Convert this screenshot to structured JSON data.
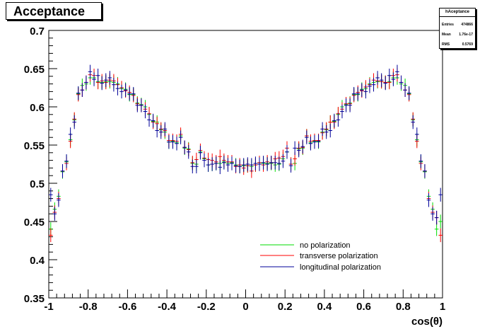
{
  "title": "Acceptance",
  "stats": {
    "name": "hAceptance",
    "rows": [
      {
        "label": "Entries",
        "value": "474866"
      },
      {
        "label": "Mean",
        "value": "1.76e-17"
      },
      {
        "label": "RMS",
        "value": "0.5769"
      }
    ]
  },
  "colors": {
    "none": "#00dd00",
    "transverse": "#ff0000",
    "longitudinal": "#000099"
  },
  "chart_data": {
    "type": "scatter",
    "xlabel": "cos(θ)",
    "ylabel": "",
    "xlim": [
      -1,
      1
    ],
    "ylim": [
      0.35,
      0.7
    ],
    "xticks": [
      -1,
      -0.8,
      -0.6,
      -0.4,
      -0.2,
      0,
      0.2,
      0.4,
      0.6,
      0.8,
      1
    ],
    "xtick_labels": [
      "-1",
      "-0.8",
      "-0.6",
      "-0.4",
      "-0.2",
      "0",
      "0.2",
      "0.4",
      "0.6",
      "0.8",
      "1"
    ],
    "yticks": [
      0.35,
      0.4,
      0.45,
      0.5,
      0.55,
      0.6,
      0.65,
      0.7
    ],
    "ytick_labels": [
      "0.35",
      "0.4",
      "0.45",
      "0.5",
      "0.55",
      "0.6",
      "0.65",
      "0.7"
    ],
    "legend_position": "bottom-center",
    "x": [
      -0.99,
      -0.97,
      -0.95,
      -0.93,
      -0.91,
      -0.89,
      -0.87,
      -0.85,
      -0.83,
      -0.81,
      -0.79,
      -0.77,
      -0.75,
      -0.73,
      -0.71,
      -0.69,
      -0.67,
      -0.65,
      -0.63,
      -0.61,
      -0.59,
      -0.57,
      -0.55,
      -0.53,
      -0.51,
      -0.49,
      -0.47,
      -0.45,
      -0.43,
      -0.41,
      -0.39,
      -0.37,
      -0.35,
      -0.33,
      -0.31,
      -0.29,
      -0.27,
      -0.25,
      -0.23,
      -0.21,
      -0.19,
      -0.17,
      -0.15,
      -0.13,
      -0.11,
      -0.09,
      -0.07,
      -0.05,
      -0.03,
      -0.01,
      0.01,
      0.03,
      0.05,
      0.07,
      0.09,
      0.11,
      0.13,
      0.15,
      0.17,
      0.19,
      0.21,
      0.23,
      0.25,
      0.27,
      0.29,
      0.31,
      0.33,
      0.35,
      0.37,
      0.39,
      0.41,
      0.43,
      0.45,
      0.47,
      0.49,
      0.51,
      0.53,
      0.55,
      0.57,
      0.59,
      0.61,
      0.63,
      0.65,
      0.67,
      0.69,
      0.71,
      0.73,
      0.75,
      0.77,
      0.79,
      0.81,
      0.83,
      0.85,
      0.87,
      0.89,
      0.91,
      0.93,
      0.95,
      0.97,
      0.99
    ],
    "series": [
      {
        "name": "no polarization",
        "key": "none",
        "values": [
          0.44,
          0.466,
          0.483,
          0.515,
          0.528,
          0.557,
          0.583,
          0.617,
          0.628,
          0.63,
          0.638,
          0.638,
          0.633,
          0.632,
          0.633,
          0.633,
          0.632,
          0.63,
          0.624,
          0.623,
          0.616,
          0.616,
          0.605,
          0.603,
          0.6,
          0.59,
          0.581,
          0.58,
          0.57,
          0.567,
          0.554,
          0.555,
          0.553,
          0.562,
          0.546,
          0.545,
          0.526,
          0.525,
          0.541,
          0.532,
          0.524,
          0.525,
          0.526,
          0.526,
          0.528,
          0.526,
          0.527,
          0.524,
          0.522,
          0.523,
          0.523,
          0.522,
          0.524,
          0.527,
          0.526,
          0.526,
          0.526,
          0.524,
          0.525,
          0.532,
          0.541,
          0.525,
          0.526,
          0.545,
          0.546,
          0.562,
          0.553,
          0.555,
          0.554,
          0.567,
          0.57,
          0.58,
          0.581,
          0.59,
          0.6,
          0.603,
          0.605,
          0.616,
          0.616,
          0.623,
          0.624,
          0.63,
          0.632,
          0.633,
          0.633,
          0.632,
          0.633,
          0.638,
          0.638,
          0.63,
          0.628,
          0.617,
          0.583,
          0.557,
          0.528,
          0.515,
          0.483,
          0.466,
          0.44,
          0.45
        ]
      },
      {
        "name": "transverse polarization",
        "key": "transverse",
        "values": [
          0.432,
          0.462,
          0.48,
          0.516,
          0.526,
          0.555,
          0.584,
          0.616,
          0.622,
          0.632,
          0.642,
          0.641,
          0.632,
          0.634,
          0.632,
          0.635,
          0.634,
          0.629,
          0.625,
          0.621,
          0.619,
          0.615,
          0.604,
          0.602,
          0.597,
          0.591,
          0.58,
          0.578,
          0.571,
          0.569,
          0.556,
          0.556,
          0.555,
          0.564,
          0.547,
          0.544,
          0.527,
          0.531,
          0.543,
          0.533,
          0.531,
          0.53,
          0.528,
          0.535,
          0.53,
          0.528,
          0.528,
          0.522,
          0.524,
          0.52,
          0.523,
          0.516,
          0.524,
          0.527,
          0.524,
          0.528,
          0.527,
          0.532,
          0.533,
          0.535,
          0.546,
          0.525,
          0.532,
          0.546,
          0.547,
          0.562,
          0.555,
          0.556,
          0.556,
          0.566,
          0.571,
          0.58,
          0.58,
          0.591,
          0.597,
          0.604,
          0.604,
          0.615,
          0.619,
          0.621,
          0.626,
          0.629,
          0.635,
          0.634,
          0.633,
          0.632,
          0.632,
          0.641,
          0.642,
          0.632,
          0.622,
          0.616,
          0.584,
          0.555,
          0.526,
          0.516,
          0.48,
          0.462,
          0.455,
          0.432
        ]
      },
      {
        "name": "longitudinal polarization",
        "key": "longitudinal",
        "values": [
          0.485,
          0.46,
          0.478,
          0.516,
          0.529,
          0.564,
          0.58,
          0.618,
          0.622,
          0.632,
          0.646,
          0.636,
          0.641,
          0.631,
          0.635,
          0.638,
          0.629,
          0.624,
          0.62,
          0.622,
          0.617,
          0.617,
          0.602,
          0.602,
          0.594,
          0.583,
          0.582,
          0.569,
          0.567,
          0.571,
          0.554,
          0.554,
          0.552,
          0.56,
          0.547,
          0.541,
          0.522,
          0.522,
          0.54,
          0.53,
          0.524,
          0.525,
          0.526,
          0.521,
          0.527,
          0.524,
          0.526,
          0.523,
          0.522,
          0.524,
          0.525,
          0.524,
          0.526,
          0.525,
          0.527,
          0.525,
          0.527,
          0.527,
          0.526,
          0.529,
          0.541,
          0.523,
          0.546,
          0.543,
          0.548,
          0.56,
          0.552,
          0.554,
          0.555,
          0.571,
          0.567,
          0.569,
          0.582,
          0.583,
          0.594,
          0.602,
          0.602,
          0.617,
          0.617,
          0.622,
          0.62,
          0.627,
          0.629,
          0.638,
          0.635,
          0.631,
          0.641,
          0.636,
          0.646,
          0.632,
          0.622,
          0.618,
          0.58,
          0.564,
          0.529,
          0.516,
          0.478,
          0.46,
          0.455,
          0.485
        ]
      }
    ]
  }
}
